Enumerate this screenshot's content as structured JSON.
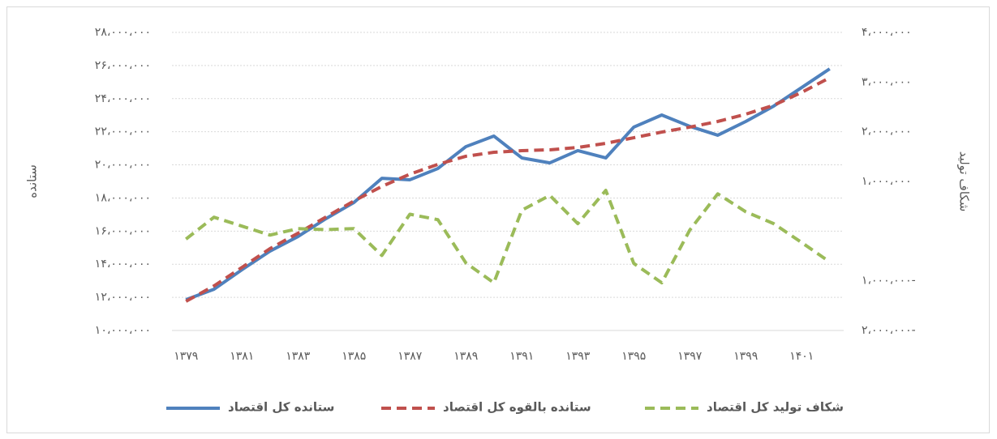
{
  "chart_data": {
    "type": "line",
    "y_label": "ستانده",
    "y2_label": "شکاف تولید",
    "categories": [
      "۱۳۷۹",
      null,
      "۱۳۸۱",
      null,
      "۱۳۸۳",
      null,
      "۱۳۸۵",
      null,
      "۱۳۸۷",
      null,
      "۱۳۸۹",
      null,
      "۱۳۹۱",
      null,
      "۱۳۹۳",
      null,
      "۱۳۹۵",
      null,
      "۱۳۹۷",
      null,
      "۱۳۹۹",
      null,
      "۱۴۰۱",
      null
    ],
    "series": [
      {
        "name": "ستانده کل اقتصاد",
        "color": "#4f81bd",
        "dashed": false,
        "values": [
          11860000,
          12490000,
          13670000,
          14790000,
          15670000,
          16750000,
          17730000,
          19190000,
          19100000,
          19780000,
          21100000,
          21740000,
          20420000,
          20120000,
          20860000,
          20420000,
          22280000,
          23010000,
          22330000,
          21790000,
          22620000,
          23550000,
          24670000,
          25800000
        ]
      },
      {
        "name": "ستانده بالقوه کل اقتصاد",
        "color": "#c0504d",
        "dashed": true,
        "values": [
          11760000,
          12690000,
          13810000,
          14940000,
          15870000,
          16850000,
          17820000,
          18700000,
          19440000,
          20030000,
          20520000,
          20760000,
          20860000,
          20910000,
          21050000,
          21300000,
          21640000,
          21980000,
          22280000,
          22620000,
          23060000,
          23600000,
          24380000,
          25260000
        ]
      },
      {
        "name": "شکاف تولید کل اقتصاد",
        "color": "#9bbb59",
        "dashed": true,
        "axis": "y2",
        "values": [
          -160000,
          280000,
          100000,
          -80000,
          50000,
          30000,
          50000,
          -490000,
          340000,
          230000,
          -640000,
          -1040000,
          420000,
          720000,
          150000,
          820000,
          -650000,
          -1040000,
          20000,
          750000,
          390000,
          150000,
          -230000,
          -620000
        ]
      }
    ],
    "ylim": [
      10000000,
      28000000
    ],
    "yticks": [
      {
        "value": 10000000,
        "label": "۱۰،۰۰۰،۰۰۰"
      },
      {
        "value": 12000000,
        "label": "۱۲،۰۰۰،۰۰۰"
      },
      {
        "value": 14000000,
        "label": "۱۴،۰۰۰،۰۰۰"
      },
      {
        "value": 16000000,
        "label": "۱۶،۰۰۰،۰۰۰"
      },
      {
        "value": 18000000,
        "label": "۱۸،۰۰۰،۰۰۰"
      },
      {
        "value": 20000000,
        "label": "۲۰،۰۰۰،۰۰۰"
      },
      {
        "value": 22000000,
        "label": "۲۲،۰۰۰،۰۰۰"
      },
      {
        "value": 24000000,
        "label": "۲۴،۰۰۰،۰۰۰"
      },
      {
        "value": 26000000,
        "label": "۲۶،۰۰۰،۰۰۰"
      },
      {
        "value": 28000000,
        "label": "۲۸،۰۰۰،۰۰۰"
      }
    ],
    "y2lim": [
      -2000000,
      4000000
    ],
    "y2ticks": [
      {
        "value": -2000000,
        "label": "۲،۰۰۰،۰۰۰-"
      },
      {
        "value": -1000000,
        "label": "۱،۰۰۰،۰۰۰-"
      },
      {
        "value": 1000000,
        "label": "۱،۰۰۰،۰۰۰"
      },
      {
        "value": 2000000,
        "label": "۲،۰۰۰،۰۰۰"
      },
      {
        "value": 3000000,
        "label": "۳،۰۰۰،۰۰۰"
      },
      {
        "value": 4000000,
        "label": "۴،۰۰۰،۰۰۰"
      }
    ],
    "grid": true,
    "legend": "bottom"
  }
}
